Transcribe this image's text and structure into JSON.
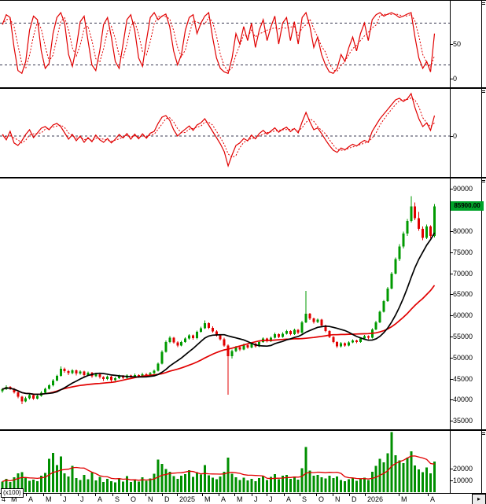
{
  "ui": {
    "price_badge": "85900.00",
    "volume_unit": "(x100)",
    "scroll_button": "▸"
  },
  "colors": {
    "line": "#e10000",
    "level": "#3a3a52",
    "up": "#009a00",
    "down": "#e10000",
    "ma_fast": "#000000",
    "ma_slow": "#e10000",
    "volume": "#008f00",
    "volume_ma": "#e10000",
    "badge_bg": "#00a229",
    "badge_text": "#000000"
  },
  "xaxis": {
    "months": [
      {
        "t": "4",
        "x": 2
      },
      {
        "t": "M",
        "x": 14
      },
      {
        "t": "A",
        "x": 36
      },
      {
        "t": "M",
        "x": 58
      },
      {
        "t": "J",
        "x": 80
      },
      {
        "t": "J",
        "x": 102
      },
      {
        "t": "A",
        "x": 124
      },
      {
        "t": "S",
        "x": 146
      },
      {
        "t": "O",
        "x": 166
      },
      {
        "t": "N",
        "x": 188
      },
      {
        "t": "D",
        "x": 209
      },
      {
        "t": "2025",
        "x": 228
      },
      {
        "t": "M",
        "x": 260
      },
      {
        "t": "A",
        "x": 281
      },
      {
        "t": "M",
        "x": 301
      },
      {
        "t": "J",
        "x": 323
      },
      {
        "t": "J",
        "x": 342
      },
      {
        "t": "A",
        "x": 364
      },
      {
        "t": "S",
        "x": 384
      },
      {
        "t": "O",
        "x": 405
      },
      {
        "t": "N",
        "x": 426
      },
      {
        "t": "D",
        "x": 447
      },
      {
        "t": "2026",
        "x": 467
      },
      {
        "t": "M",
        "x": 510
      },
      {
        "t": "A",
        "x": 547
      }
    ]
  },
  "chart_data": [
    {
      "id": "stochastic",
      "type": "line",
      "ylim": [
        -12,
        112
      ],
      "dashed_levels": [
        80,
        20
      ],
      "yticks": [
        {
          "v": 50,
          "t": "50"
        },
        {
          "v": 0,
          "t": "0"
        }
      ],
      "legend": "fast oscillator with dotted signal line",
      "values": [
        78,
        92,
        88,
        45,
        12,
        8,
        25,
        70,
        90,
        85,
        40,
        15,
        22,
        65,
        88,
        95,
        80,
        35,
        18,
        45,
        82,
        90,
        55,
        20,
        12,
        40,
        78,
        88,
        60,
        25,
        15,
        50,
        85,
        92,
        70,
        30,
        18,
        55,
        88,
        95,
        85,
        90,
        93,
        75,
        40,
        20,
        35,
        70,
        88,
        92,
        65,
        80,
        90,
        95,
        60,
        30,
        15,
        10,
        8,
        30,
        65,
        50,
        75,
        55,
        80,
        45,
        70,
        85,
        55,
        75,
        90,
        50,
        80,
        88,
        55,
        82,
        50,
        88,
        95,
        75,
        45,
        60,
        35,
        20,
        10,
        8,
        15,
        35,
        25,
        45,
        60,
        40,
        65,
        80,
        55,
        85,
        92,
        95,
        90,
        93,
        95,
        92,
        88,
        90,
        93,
        95,
        60,
        30,
        15,
        25,
        10,
        65
      ]
    },
    {
      "id": "momentum",
      "type": "line",
      "ylim": [
        -13,
        15
      ],
      "dashed_levels": [
        0
      ],
      "yticks": [
        {
          "v": 0,
          "t": "0"
        }
      ],
      "legend": "momentum oscillator with dotted signal line",
      "values": [
        0.5,
        -1.2,
        1.5,
        -2.2,
        -3.0,
        -1.5,
        0.5,
        2.0,
        -0.5,
        1.0,
        2.5,
        3.0,
        2.0,
        3.5,
        4.0,
        3.0,
        1.0,
        -1.0,
        0.5,
        -1.5,
        0.0,
        -2.0,
        -0.5,
        -1.8,
        0.3,
        -1.2,
        -2.0,
        -0.8,
        -2.2,
        -1.0,
        0.5,
        -0.6,
        0.8,
        -1.0,
        0.6,
        -0.9,
        0.7,
        -0.7,
        0.9,
        1.5,
        4.0,
        6.0,
        6.5,
        5.0,
        2.0,
        0.0,
        1.2,
        2.2,
        3.2,
        1.8,
        3.5,
        4.2,
        5.5,
        3.5,
        1.5,
        -0.5,
        -2.5,
        -5.0,
        -9.5,
        -6.0,
        -3.0,
        -2.2,
        -0.8,
        -1.5,
        0.3,
        -0.9,
        0.8,
        1.8,
        0.6,
        1.6,
        2.6,
        1.2,
        2.2,
        2.8,
        1.4,
        2.4,
        1.0,
        4.5,
        7.5,
        4.5,
        2.0,
        2.6,
        0.8,
        -1.2,
        -3.0,
        -4.5,
        -5.2,
        -3.8,
        -4.4,
        -3.4,
        -2.6,
        -3.2,
        -2.2,
        -1.4,
        -2.0,
        1.5,
        3.5,
        5.5,
        7.0,
        8.5,
        10.0,
        11.5,
        12.0,
        11.0,
        11.8,
        13.5,
        9.0,
        5.5,
        3.0,
        4.2,
        1.8,
        6.5
      ]
    },
    {
      "id": "price",
      "type": "candlestick",
      "ylim": [
        33000,
        92500
      ],
      "last_price": 85900.0,
      "ma_periods": [
        12,
        26
      ],
      "yticks": [
        {
          "v": 90000,
          "t": "90000"
        },
        {
          "v": 80000,
          "t": "80000"
        },
        {
          "v": 75000,
          "t": "75000"
        },
        {
          "v": 70000,
          "t": "70000"
        },
        {
          "v": 65000,
          "t": "65000"
        },
        {
          "v": 60000,
          "t": "60000"
        },
        {
          "v": 55000,
          "t": "55000"
        },
        {
          "v": 50000,
          "t": "50000"
        },
        {
          "v": 45000,
          "t": "45000"
        },
        {
          "v": 40000,
          "t": "40000"
        },
        {
          "v": 35000,
          "t": "35000"
        }
      ],
      "candles": [
        [
          42000,
          42800,
          41700,
          42500
        ],
        [
          42500,
          43400,
          42300,
          43100
        ],
        [
          43100,
          43300,
          42300,
          42600
        ],
        [
          42600,
          42800,
          41500,
          41800
        ],
        [
          41800,
          42000,
          40400,
          40700
        ],
        [
          40700,
          40900,
          39000,
          39600
        ],
        [
          39600,
          40700,
          39400,
          40400
        ],
        [
          40400,
          41400,
          40100,
          41100
        ],
        [
          41100,
          41300,
          40000,
          40300
        ],
        [
          40300,
          41200,
          40100,
          40900
        ],
        [
          40900,
          42000,
          40700,
          41700
        ],
        [
          41700,
          42900,
          41500,
          42600
        ],
        [
          42600,
          43700,
          42400,
          43400
        ],
        [
          43400,
          44900,
          43200,
          44600
        ],
        [
          44600,
          46000,
          44400,
          45700
        ],
        [
          45700,
          47900,
          45500,
          47400
        ],
        [
          47400,
          47600,
          46400,
          46800
        ],
        [
          46800,
          47100,
          45900,
          46300
        ],
        [
          46300,
          47300,
          46100,
          47000
        ],
        [
          47000,
          47200,
          45800,
          46200
        ],
        [
          46200,
          47000,
          46000,
          46700
        ],
        [
          46700,
          46900,
          45500,
          45900
        ],
        [
          45900,
          46700,
          45700,
          46400
        ],
        [
          46400,
          46600,
          45200,
          45600
        ],
        [
          45600,
          46400,
          45400,
          46100
        ],
        [
          46100,
          46300,
          45000,
          45400
        ],
        [
          45400,
          45600,
          44500,
          44900
        ],
        [
          44900,
          45800,
          44700,
          45500
        ],
        [
          45500,
          45700,
          44300,
          44700
        ],
        [
          44700,
          45400,
          44500,
          45100
        ],
        [
          45100,
          46000,
          44900,
          45700
        ],
        [
          45700,
          45900,
          44900,
          45200
        ],
        [
          45200,
          46100,
          45000,
          45800
        ],
        [
          45800,
          46000,
          45000,
          45300
        ],
        [
          45300,
          46200,
          45100,
          45900
        ],
        [
          45900,
          46100,
          45200,
          45500
        ],
        [
          45500,
          46400,
          45300,
          46100
        ],
        [
          46100,
          46300,
          45400,
          45700
        ],
        [
          45700,
          46600,
          45500,
          46300
        ],
        [
          46300,
          47200,
          46100,
          46900
        ],
        [
          46900,
          48900,
          46700,
          48600
        ],
        [
          48600,
          51700,
          48400,
          51400
        ],
        [
          51400,
          54100,
          51200,
          53700
        ],
        [
          53700,
          55100,
          53400,
          54700
        ],
        [
          54700,
          54900,
          53300,
          53600
        ],
        [
          53600,
          53900,
          52500,
          52900
        ],
        [
          52900,
          54000,
          52700,
          53700
        ],
        [
          53700,
          54800,
          53500,
          54500
        ],
        [
          54500,
          55600,
          54300,
          55300
        ],
        [
          55300,
          55500,
          54300,
          54600
        ],
        [
          54600,
          56400,
          54400,
          56100
        ],
        [
          56100,
          57300,
          55900,
          57000
        ],
        [
          57000,
          58800,
          56800,
          58200
        ],
        [
          58200,
          58400,
          56800,
          57100
        ],
        [
          57100,
          57400,
          55900,
          56200
        ],
        [
          56200,
          56500,
          55000,
          55300
        ],
        [
          55300,
          55600,
          54100,
          54400
        ],
        [
          54400,
          54700,
          52600,
          52900
        ],
        [
          52900,
          53100,
          41200,
          50300
        ],
        [
          50300,
          51900,
          49800,
          51600
        ],
        [
          51600,
          52800,
          51300,
          52500
        ],
        [
          52500,
          52700,
          51600,
          51900
        ],
        [
          51900,
          53300,
          51700,
          53000
        ],
        [
          53000,
          53200,
          52100,
          52400
        ],
        [
          52400,
          53600,
          52200,
          53300
        ],
        [
          53300,
          53500,
          52400,
          52700
        ],
        [
          52700,
          54000,
          52500,
          53700
        ],
        [
          53700,
          54800,
          53500,
          54500
        ],
        [
          54500,
          54700,
          53600,
          53900
        ],
        [
          53900,
          55000,
          53700,
          54700
        ],
        [
          54700,
          55900,
          54500,
          55600
        ],
        [
          55600,
          55800,
          54600,
          54900
        ],
        [
          54900,
          56000,
          54700,
          55700
        ],
        [
          55700,
          56600,
          55500,
          56300
        ],
        [
          56300,
          56500,
          55300,
          55600
        ],
        [
          55600,
          56900,
          55400,
          56600
        ],
        [
          56600,
          56800,
          55600,
          55900
        ],
        [
          55900,
          58700,
          55700,
          58400
        ],
        [
          58400,
          65800,
          58200,
          60400
        ],
        [
          60400,
          60600,
          58900,
          59300
        ],
        [
          59300,
          59500,
          58100,
          58500
        ],
        [
          58500,
          59300,
          58200,
          59000
        ],
        [
          59000,
          59200,
          57300,
          57600
        ],
        [
          57600,
          57800,
          56000,
          56300
        ],
        [
          56300,
          56500,
          54600,
          54900
        ],
        [
          54900,
          55100,
          53400,
          53700
        ],
        [
          53700,
          53900,
          52300,
          52700
        ],
        [
          52700,
          53700,
          52400,
          53400
        ],
        [
          53400,
          53600,
          52600,
          52900
        ],
        [
          52900,
          53900,
          52700,
          53600
        ],
        [
          53600,
          54400,
          53400,
          54100
        ],
        [
          54100,
          54300,
          53400,
          53700
        ],
        [
          53700,
          54800,
          53500,
          54500
        ],
        [
          54500,
          55400,
          54300,
          55100
        ],
        [
          55100,
          55300,
          54400,
          54700
        ],
        [
          54700,
          57000,
          54500,
          56700
        ],
        [
          56700,
          58700,
          56500,
          58400
        ],
        [
          58400,
          61200,
          58200,
          60900
        ],
        [
          60900,
          63700,
          60700,
          63400
        ],
        [
          63400,
          66800,
          63200,
          66400
        ],
        [
          66400,
          70300,
          66200,
          69900
        ],
        [
          69900,
          73800,
          69700,
          73400
        ],
        [
          73400,
          76900,
          72900,
          76400
        ],
        [
          76400,
          79900,
          75900,
          79400
        ],
        [
          79400,
          82900,
          78900,
          82400
        ],
        [
          82400,
          88300,
          82100,
          85900
        ],
        [
          85900,
          86800,
          82600,
          83100
        ],
        [
          83100,
          84600,
          80100,
          80600
        ],
        [
          80600,
          81100,
          77900,
          78400
        ],
        [
          78400,
          81600,
          78100,
          81100
        ],
        [
          81100,
          81400,
          78300,
          78900
        ],
        [
          78900,
          86400,
          78500,
          85900
        ]
      ]
    },
    {
      "id": "volume",
      "type": "bar",
      "ylim": [
        0,
        52000
      ],
      "ma_period": 10,
      "yticks": [
        {
          "v": 20000,
          "t": "20000"
        },
        {
          "v": 10000,
          "t": "10000"
        }
      ],
      "values": [
        9000,
        11500,
        8600,
        12800,
        16000,
        17000,
        12500,
        9800,
        10700,
        9300,
        14000,
        16500,
        28500,
        33500,
        23000,
        30500,
        16000,
        13400,
        22300,
        12100,
        10500,
        14700,
        10900,
        16800,
        10000,
        13000,
        8700,
        11400,
        9500,
        8400,
        12100,
        9100,
        13600,
        8600,
        11100,
        8900,
        12700,
        9600,
        11800,
        15700,
        27700,
        24100,
        19600,
        17500,
        13600,
        11400,
        14100,
        15500,
        18800,
        12900,
        17100,
        15000,
        22900,
        14500,
        12300,
        11100,
        13200,
        17500,
        29500,
        15700,
        12700,
        10400,
        12300,
        10000,
        11400,
        9300,
        12100,
        13700,
        10500,
        13000,
        15300,
        10900,
        13900,
        14600,
        11200,
        13400,
        10700,
        20500,
        38500,
        18200,
        13900,
        14800,
        12700,
        11600,
        14100,
        12100,
        13200,
        10500,
        9500,
        10900,
        12000,
        9800,
        11200,
        12500,
        10400,
        17500,
        22300,
        28200,
        25400,
        33000,
        51000,
        31200,
        27100,
        24600,
        29300,
        34800,
        22700,
        19400,
        17100,
        21000,
        15900,
        26100
      ]
    }
  ]
}
